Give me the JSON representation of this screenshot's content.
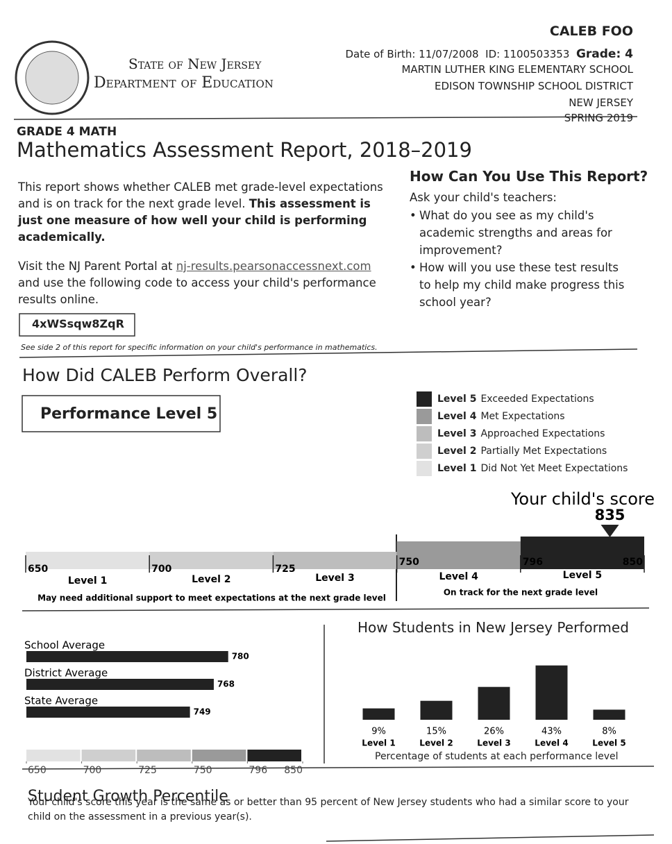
{
  "header": {
    "state_line": "State of New Jersey",
    "department": "Department of Education",
    "student_name": "CALEB FOO",
    "dob": "Date of Birth: 11/07/2008",
    "id": "ID: 1100503353",
    "grade": "Grade: 4",
    "school": "MARTIN LUTHER KING ELEMENTARY SCHOOL",
    "district": "EDISON TOWNSHIP SCHOOL DISTRICT",
    "state": "NEW JERSEY",
    "season": "SPRING 2019"
  },
  "report": {
    "subject": "GRADE 4 MATH",
    "title": "Mathematics Assessment Report, 2018–2019"
  },
  "intro": {
    "text": "This report shows whether CALEB met grade-level expectations and is on track for the next grade level.",
    "bold": "This assessment is just one measure of how well your child is performing academically."
  },
  "portal": {
    "text_before": "Visit the NJ Parent Portal at",
    "link": "nj-results.pearsonaccessnext.com",
    "text_after": "and use the following code to access your child's performance results online.",
    "code": "4xWSsqw8ZqR",
    "note": "See side 2 of this report for specific information on your child's performance in mathematics."
  },
  "use_report": {
    "title": "How Can You Use This Report?",
    "lead": "Ask your child's teachers:",
    "bullets": [
      "What do you see as my child's academic strengths and areas for improvement?",
      "How will you use these test results to help my child make progress this school year?"
    ]
  },
  "overall": {
    "title": "How Did CALEB Perform Overall?",
    "level_box": "Performance Level 5",
    "legend": [
      {
        "level": "Level 5",
        "description": "Exceeded Expectations",
        "color": "#222222"
      },
      {
        "level": "Level 4",
        "description": "Met Expectations",
        "color": "#9a9a9a"
      },
      {
        "level": "Level 3",
        "description": "Approached Expectations",
        "color": "#bdbdbd"
      },
      {
        "level": "Level 2",
        "description": "Partially Met Expectations",
        "color": "#cfcfcf"
      },
      {
        "level": "Level 1",
        "description": "Did Not Yet Meet Expectations",
        "color": "#e2e2e2"
      }
    ]
  },
  "chart_data": [
    {
      "type": "scale",
      "title": "Your child's score",
      "value": 835,
      "xlim": [
        650,
        850
      ],
      "xticks": [
        650,
        700,
        725,
        750,
        796,
        850
      ],
      "categories": [
        "Level 1",
        "Level 2",
        "Level 3",
        "Level 4",
        "Level 5"
      ],
      "colors": [
        "#e2e2e2",
        "#cfcfcf",
        "#bdbdbd",
        "#9a9a9a",
        "#222222"
      ],
      "notes": [
        "May need additional support to meet expectations at the next grade level",
        "On track for the next grade level"
      ]
    },
    {
      "type": "hbar",
      "categories": [
        "School Average",
        "District Average",
        "State Average"
      ],
      "values": [
        780,
        768,
        749
      ],
      "color": "#222222",
      "xlim": [
        650,
        850
      ],
      "xticks": [
        650,
        700,
        725,
        750,
        796,
        850
      ],
      "scale_colors": [
        "#e2e2e2",
        "#cfcfcf",
        "#bdbdbd",
        "#9a9a9a",
        "#222222"
      ]
    },
    {
      "type": "bar",
      "title": "How Students in New Jersey Performed",
      "categories": [
        "Level 1",
        "Level 2",
        "Level 3",
        "Level 4",
        "Level 5"
      ],
      "values": [
        9,
        15,
        26,
        43,
        8
      ],
      "value_labels": [
        "9%",
        "15%",
        "26%",
        "43%",
        "8%"
      ],
      "color": "#222222",
      "xlabel": "Percentage of students at each performance level"
    }
  ],
  "growth": {
    "title": "Student Growth Percentile",
    "text": "Your child's score this year is the same as or better than 95 percent of New Jersey students who had a similar score to your child on the assessment in a previous year(s)."
  }
}
